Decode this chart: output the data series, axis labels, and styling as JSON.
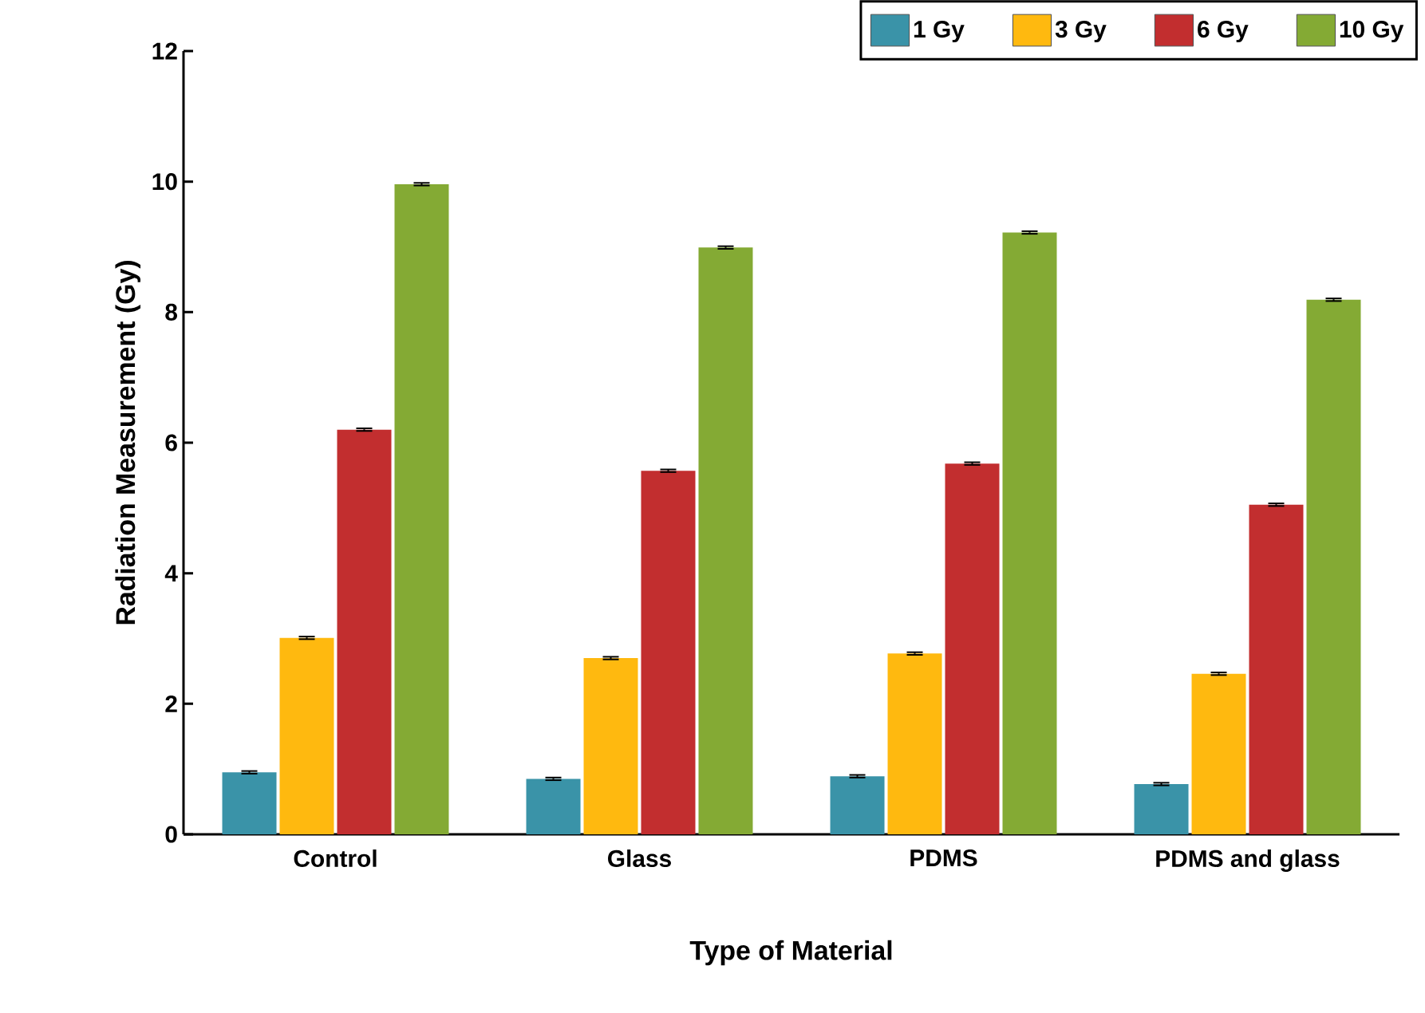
{
  "chart_data": {
    "type": "bar",
    "xlabel": "Type of Material",
    "ylabel": "Radiation Measurement (Gy)",
    "categories": [
      "Control",
      "Glass",
      "PDMS",
      "PDMS and glass"
    ],
    "series": [
      {
        "name": "1 Gy",
        "color": "#3a93a8",
        "values": [
          0.95,
          0.85,
          0.89,
          0.77
        ],
        "errors": [
          0.02,
          0.02,
          0.02,
          0.02
        ]
      },
      {
        "name": "3 Gy",
        "color": "#ffb90f",
        "values": [
          3.01,
          2.7,
          2.77,
          2.46
        ],
        "errors": [
          0.02,
          0.02,
          0.02,
          0.02
        ]
      },
      {
        "name": "6 Gy",
        "color": "#c22e2f",
        "values": [
          6.2,
          5.57,
          5.68,
          5.05
        ],
        "errors": [
          0.02,
          0.02,
          0.02,
          0.02
        ]
      },
      {
        "name": "10 Gy",
        "color": "#84aa34",
        "values": [
          9.96,
          8.99,
          9.22,
          8.19
        ],
        "errors": [
          0.02,
          0.02,
          0.02,
          0.02
        ]
      }
    ],
    "ylim": [
      0,
      12
    ],
    "yticks": [
      0,
      2,
      4,
      6,
      8,
      10,
      12
    ],
    "grid": false,
    "legend": "top right"
  }
}
